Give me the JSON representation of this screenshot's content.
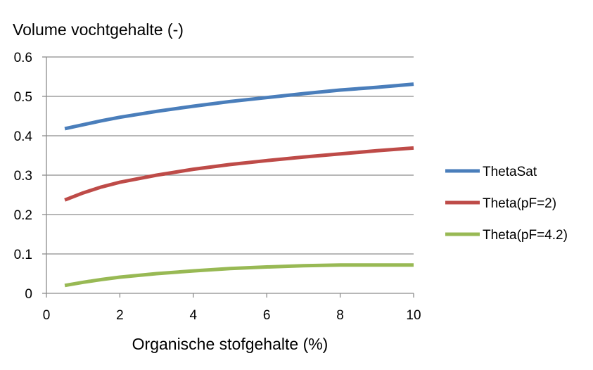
{
  "chart_data": {
    "type": "line",
    "title": "",
    "ylabel": "Volume vochtgehalte (-)",
    "xlabel": "Organische stofgehalte (%)",
    "xlim": [
      0,
      10
    ],
    "ylim": [
      0,
      0.6
    ],
    "x_ticks": [
      "0",
      "2",
      "4",
      "6",
      "8",
      "10"
    ],
    "y_ticks": [
      "0",
      "0.1",
      "0.2",
      "0.3",
      "0.4",
      "0.5",
      "0.6"
    ],
    "grid": "horizontal",
    "legend_position": "right",
    "series": [
      {
        "name": "ThetaSat",
        "color": "#4a7ebb",
        "points": [
          [
            0.5,
            0.418
          ],
          [
            1,
            0.428
          ],
          [
            1.5,
            0.438
          ],
          [
            2,
            0.447
          ],
          [
            3,
            0.462
          ],
          [
            4,
            0.475
          ],
          [
            5,
            0.487
          ],
          [
            6,
            0.497
          ],
          [
            7,
            0.507
          ],
          [
            8,
            0.516
          ],
          [
            9,
            0.523
          ],
          [
            10,
            0.531
          ]
        ]
      },
      {
        "name": "Theta(pF=2)",
        "color": "#be4b48",
        "points": [
          [
            0.5,
            0.237
          ],
          [
            1,
            0.255
          ],
          [
            1.5,
            0.27
          ],
          [
            2,
            0.282
          ],
          [
            3,
            0.3
          ],
          [
            4,
            0.315
          ],
          [
            5,
            0.327
          ],
          [
            6,
            0.337
          ],
          [
            7,
            0.346
          ],
          [
            8,
            0.354
          ],
          [
            9,
            0.362
          ],
          [
            10,
            0.369
          ]
        ]
      },
      {
        "name": "Theta(pF=4.2)",
        "color": "#98b954",
        "points": [
          [
            0.5,
            0.02
          ],
          [
            1,
            0.028
          ],
          [
            1.5,
            0.035
          ],
          [
            2,
            0.041
          ],
          [
            3,
            0.05
          ],
          [
            4,
            0.057
          ],
          [
            5,
            0.063
          ],
          [
            6,
            0.067
          ],
          [
            7,
            0.07
          ],
          [
            8,
            0.072
          ],
          [
            9,
            0.072
          ],
          [
            10,
            0.072
          ]
        ]
      }
    ]
  }
}
